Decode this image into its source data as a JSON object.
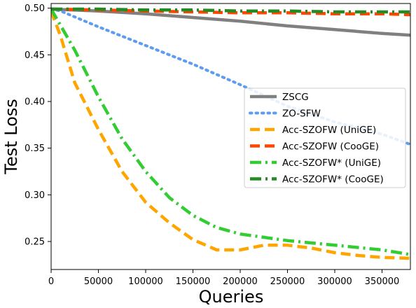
{
  "chart_data": {
    "type": "line",
    "xlabel": "Queries",
    "ylabel": "Test Loss",
    "xlim": [
      0,
      380000
    ],
    "ylim": [
      0.22,
      0.505
    ],
    "x_ticks": [
      0,
      50000,
      100000,
      150000,
      200000,
      250000,
      300000,
      350000
    ],
    "x_tick_labels": [
      "0",
      "50000",
      "100000",
      "150000",
      "200000",
      "250000",
      "300000",
      "350000"
    ],
    "y_ticks": [
      0.25,
      0.3,
      0.35,
      0.4,
      0.45,
      0.5
    ],
    "y_tick_labels": [
      "0.25",
      "0.30",
      "0.35",
      "0.40",
      "0.45",
      "0.50"
    ],
    "grid": false,
    "legend_position": "center-right",
    "series": [
      {
        "name": "ZSCG",
        "color": "#808080",
        "dash": "solid",
        "width": 4.5,
        "x": [
          0,
          50000,
          100000,
          150000,
          200000,
          250000,
          300000,
          350000,
          380000
        ],
        "y": [
          0.499,
          0.497,
          0.494,
          0.49,
          0.486,
          0.481,
          0.477,
          0.473,
          0.471
        ]
      },
      {
        "name": "ZO-SFW",
        "color": "#5d9cf0",
        "dash": "dotted",
        "width": 4,
        "x": [
          0,
          10000,
          50000,
          100000,
          150000,
          200000,
          250000,
          300000,
          350000,
          380000
        ],
        "y": [
          0.499,
          0.497,
          0.48,
          0.46,
          0.44,
          0.418,
          0.395,
          0.378,
          0.365,
          0.354
        ]
      },
      {
        "name": "Acc-SZOFW (UniGE)",
        "color": "#ffa500",
        "dash": "dashed",
        "width": 4.5,
        "x": [
          0,
          10000,
          25000,
          50000,
          75000,
          100000,
          125000,
          150000,
          175000,
          200000,
          225000,
          250000,
          275000,
          300000,
          325000,
          350000,
          380000
        ],
        "y": [
          0.497,
          0.47,
          0.42,
          0.37,
          0.325,
          0.292,
          0.27,
          0.252,
          0.241,
          0.241,
          0.246,
          0.246,
          0.243,
          0.238,
          0.235,
          0.233,
          0.232
        ]
      },
      {
        "name": "Acc-SZOFW (CooGE)",
        "color": "#ff4500",
        "dash": "dashed",
        "width": 4.5,
        "x": [
          0,
          50000,
          100000,
          150000,
          200000,
          250000,
          300000,
          350000,
          380000
        ],
        "y": [
          0.499,
          0.498,
          0.497,
          0.496,
          0.495,
          0.495,
          0.494,
          0.494,
          0.493
        ]
      },
      {
        "name": "Acc-SZOFW* (UniGE)",
        "color": "#32cd32",
        "dash": "dashdot",
        "width": 4.5,
        "x": [
          0,
          25000,
          50000,
          75000,
          100000,
          125000,
          150000,
          175000,
          200000,
          250000,
          300000,
          350000,
          380000
        ],
        "y": [
          0.499,
          0.455,
          0.405,
          0.36,
          0.325,
          0.297,
          0.278,
          0.265,
          0.258,
          0.251,
          0.246,
          0.241,
          0.236
        ]
      },
      {
        "name": "Acc-SZOFW* (CooGE)",
        "color": "#228b22",
        "dash": "dashdot",
        "width": 4.5,
        "x": [
          0,
          50000,
          100000,
          150000,
          200000,
          250000,
          300000,
          350000,
          380000
        ],
        "y": [
          0.499,
          0.499,
          0.498,
          0.498,
          0.497,
          0.497,
          0.496,
          0.496,
          0.496
        ]
      }
    ]
  }
}
